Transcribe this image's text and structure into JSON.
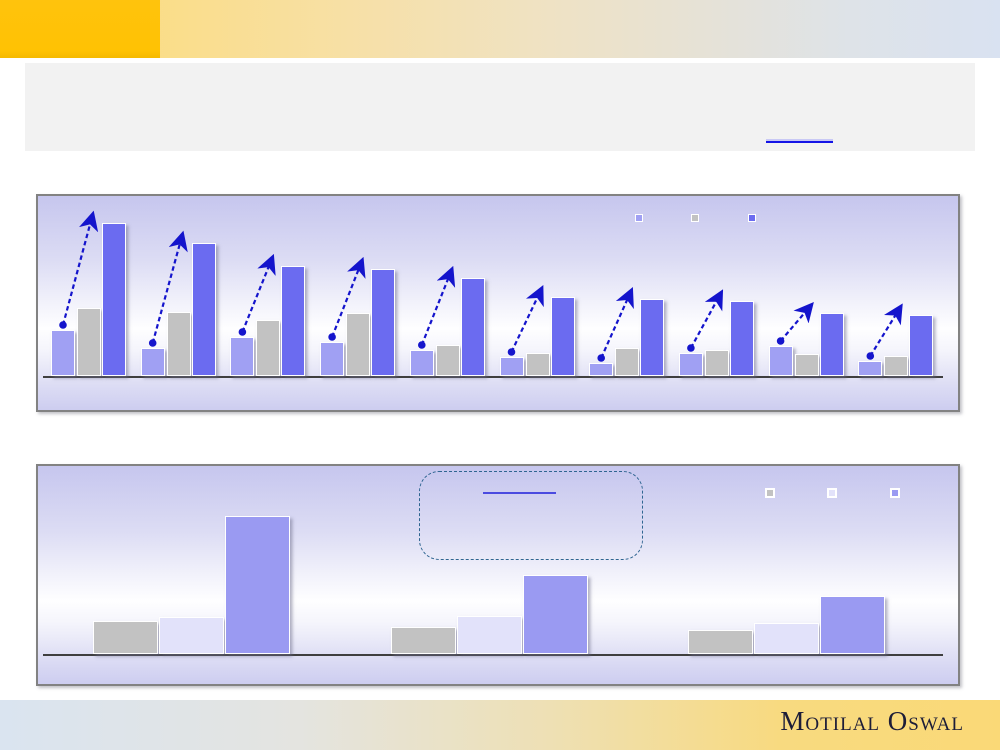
{
  "header": {
    "gold_block_color": "#ffc20a",
    "banner_gradient": [
      "#fbdd86",
      "#efe2c4",
      "#d9e2f1"
    ]
  },
  "title_area": {
    "background_color": "#f2f2f2",
    "link_underline_color": "#1414e6"
  },
  "footer": {
    "logo_text": "Motilal Oswal",
    "logo_color": "#1d1d38",
    "bar_gradient": [
      "#dae4f0",
      "#eee0b4",
      "#fad977"
    ]
  },
  "chart_data": [
    {
      "type": "bar",
      "title": "",
      "xlabel": "",
      "ylabel": "",
      "categories": [
        "",
        "",
        "",
        "",
        "",
        "",
        "",
        "",
        "",
        ""
      ],
      "value_unit": "relative height (pixel-measured; no axis tick labels visible)",
      "series": [
        {
          "name": "light-periwinkle",
          "color": "#a0a0f3",
          "values": [
            46,
            28,
            39,
            34,
            26,
            19,
            13,
            23,
            30,
            15
          ]
        },
        {
          "name": "silver-gray",
          "color": "#c2c2c2",
          "values": [
            68,
            64,
            56,
            63,
            31,
            23,
            28,
            26,
            22,
            20
          ]
        },
        {
          "name": "blue-purple",
          "color": "#6b6bf0",
          "values": [
            153,
            133,
            110,
            107,
            98,
            79,
            77,
            75,
            63,
            61
          ]
        }
      ],
      "legend": {
        "position": "top-right",
        "labels_visible": false
      },
      "annotations": {
        "arrows": "dashed blue arrow with round start marker from top of series-1 bar to top of series-3 bar in every group",
        "arrow_color": "#1414cc"
      },
      "grid": false
    },
    {
      "type": "bar",
      "title": "",
      "xlabel": "",
      "ylabel": "",
      "categories": [
        "",
        "",
        ""
      ],
      "value_unit": "relative height (pixel-measured; no axis tick labels visible)",
      "series": [
        {
          "name": "silver-gray",
          "color": "#c2c2c2",
          "values": [
            33,
            27,
            24
          ]
        },
        {
          "name": "pale-lavender",
          "color": "#e2e2fa",
          "values": [
            37,
            38,
            31
          ]
        },
        {
          "name": "medium-purple",
          "color": "#9a9af2",
          "values": [
            138,
            79,
            58
          ]
        }
      ],
      "legend": {
        "position": "top-right",
        "labels_visible": false
      },
      "annotations": {
        "callout": "dashed rounded rectangle, steel-blue border, containing a short purple link underline (text not visible)",
        "callout_border_color": "#2f6591",
        "callout_underline_color": "#4a4ae0"
      },
      "grid": false
    }
  ]
}
